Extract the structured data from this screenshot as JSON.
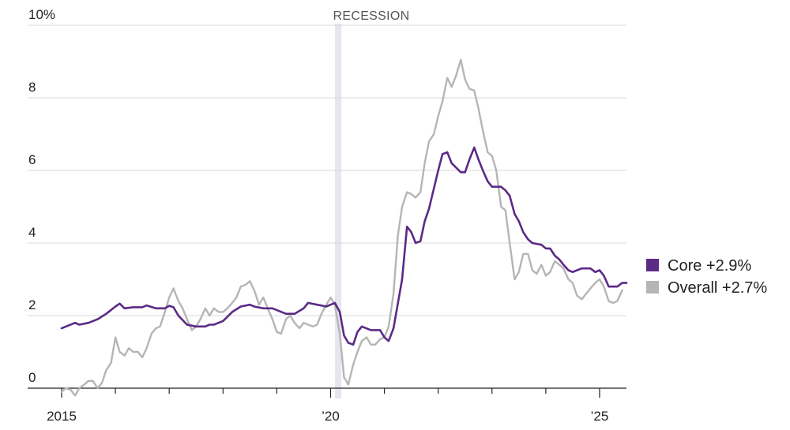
{
  "chart_data": {
    "type": "line",
    "title": "",
    "xlabel": "",
    "ylabel": "",
    "ylim": [
      0,
      10
    ],
    "xlim": [
      2015.0,
      2025.5
    ],
    "y_ticks": [
      {
        "value": 0,
        "label": "0"
      },
      {
        "value": 2,
        "label": "2"
      },
      {
        "value": 4,
        "label": "4"
      },
      {
        "value": 6,
        "label": "6"
      },
      {
        "value": 8,
        "label": "8"
      },
      {
        "value": 10,
        "label": "10%"
      }
    ],
    "x_ticks": [
      {
        "value": 2015,
        "label": "2015"
      },
      {
        "value": 2016,
        "label": ""
      },
      {
        "value": 2017,
        "label": ""
      },
      {
        "value": 2018,
        "label": ""
      },
      {
        "value": 2019,
        "label": ""
      },
      {
        "value": 2020,
        "label": "’20"
      },
      {
        "value": 2021,
        "label": ""
      },
      {
        "value": 2022,
        "label": ""
      },
      {
        "value": 2023,
        "label": ""
      },
      {
        "value": 2024,
        "label": ""
      },
      {
        "value": 2025,
        "label": "’25"
      }
    ],
    "grid": "horizontal",
    "legend": "right",
    "recession": {
      "label": "RECESSION",
      "start": 2020.08,
      "end": 2020.2
    },
    "series": [
      {
        "name": "Core +2.9%",
        "color": "#5b2a86",
        "points": [
          [
            2015.0,
            1.65
          ],
          [
            2015.25,
            1.8
          ],
          [
            2015.33,
            1.75
          ],
          [
            2015.5,
            1.8
          ],
          [
            2015.67,
            1.9
          ],
          [
            2015.83,
            2.05
          ],
          [
            2016.0,
            2.25
          ],
          [
            2016.08,
            2.33
          ],
          [
            2016.17,
            2.2
          ],
          [
            2016.33,
            2.23
          ],
          [
            2016.5,
            2.23
          ],
          [
            2016.58,
            2.28
          ],
          [
            2016.75,
            2.2
          ],
          [
            2016.92,
            2.2
          ],
          [
            2017.0,
            2.27
          ],
          [
            2017.08,
            2.23
          ],
          [
            2017.17,
            2.0
          ],
          [
            2017.33,
            1.75
          ],
          [
            2017.5,
            1.7
          ],
          [
            2017.67,
            1.7
          ],
          [
            2017.75,
            1.75
          ],
          [
            2017.83,
            1.75
          ],
          [
            2018.0,
            1.85
          ],
          [
            2018.17,
            2.1
          ],
          [
            2018.33,
            2.25
          ],
          [
            2018.5,
            2.3
          ],
          [
            2018.58,
            2.25
          ],
          [
            2018.75,
            2.2
          ],
          [
            2018.92,
            2.2
          ],
          [
            2019.17,
            2.05
          ],
          [
            2019.33,
            2.05
          ],
          [
            2019.5,
            2.2
          ],
          [
            2019.58,
            2.35
          ],
          [
            2019.75,
            2.3
          ],
          [
            2019.92,
            2.25
          ],
          [
            2020.0,
            2.3
          ],
          [
            2020.08,
            2.35
          ],
          [
            2020.17,
            2.1
          ],
          [
            2020.25,
            1.45
          ],
          [
            2020.33,
            1.25
          ],
          [
            2020.42,
            1.2
          ],
          [
            2020.5,
            1.55
          ],
          [
            2020.58,
            1.7
          ],
          [
            2020.75,
            1.6
          ],
          [
            2020.92,
            1.6
          ],
          [
            2021.0,
            1.4
          ],
          [
            2021.08,
            1.3
          ],
          [
            2021.17,
            1.65
          ],
          [
            2021.33,
            3.0
          ],
          [
            2021.42,
            4.45
          ],
          [
            2021.5,
            4.3
          ],
          [
            2021.58,
            4.0
          ],
          [
            2021.67,
            4.05
          ],
          [
            2021.75,
            4.6
          ],
          [
            2021.83,
            4.95
          ],
          [
            2021.92,
            5.5
          ],
          [
            2022.0,
            6.0
          ],
          [
            2022.08,
            6.45
          ],
          [
            2022.17,
            6.5
          ],
          [
            2022.25,
            6.2
          ],
          [
            2022.42,
            5.95
          ],
          [
            2022.5,
            5.95
          ],
          [
            2022.58,
            6.3
          ],
          [
            2022.67,
            6.63
          ],
          [
            2022.75,
            6.3
          ],
          [
            2022.83,
            6.0
          ],
          [
            2022.92,
            5.7
          ],
          [
            2023.0,
            5.55
          ],
          [
            2023.17,
            5.55
          ],
          [
            2023.25,
            5.45
          ],
          [
            2023.33,
            5.3
          ],
          [
            2023.42,
            4.8
          ],
          [
            2023.5,
            4.6
          ],
          [
            2023.58,
            4.3
          ],
          [
            2023.67,
            4.1
          ],
          [
            2023.75,
            4.0
          ],
          [
            2023.92,
            3.95
          ],
          [
            2024.0,
            3.85
          ],
          [
            2024.08,
            3.85
          ],
          [
            2024.17,
            3.65
          ],
          [
            2024.25,
            3.55
          ],
          [
            2024.33,
            3.4
          ],
          [
            2024.42,
            3.25
          ],
          [
            2024.5,
            3.2
          ],
          [
            2024.58,
            3.25
          ],
          [
            2024.67,
            3.3
          ],
          [
            2024.75,
            3.3
          ],
          [
            2024.83,
            3.3
          ],
          [
            2024.92,
            3.2
          ],
          [
            2025.0,
            3.25
          ],
          [
            2025.08,
            3.1
          ],
          [
            2025.17,
            2.8
          ],
          [
            2025.25,
            2.8
          ],
          [
            2025.33,
            2.8
          ],
          [
            2025.42,
            2.9
          ],
          [
            2025.5,
            2.9
          ]
        ]
      },
      {
        "name": "Overall +2.7%",
        "color": "#b5b5b5",
        "points": [
          [
            2015.0,
            -0.1
          ],
          [
            2015.08,
            0.0
          ],
          [
            2015.17,
            -0.05
          ],
          [
            2015.25,
            -0.2
          ],
          [
            2015.33,
            0.0
          ],
          [
            2015.42,
            0.1
          ],
          [
            2015.5,
            0.2
          ],
          [
            2015.58,
            0.2
          ],
          [
            2015.67,
            0.0
          ],
          [
            2015.75,
            0.15
          ],
          [
            2015.83,
            0.5
          ],
          [
            2015.92,
            0.7
          ],
          [
            2016.0,
            1.4
          ],
          [
            2016.08,
            1.0
          ],
          [
            2016.17,
            0.9
          ],
          [
            2016.25,
            1.1
          ],
          [
            2016.33,
            1.0
          ],
          [
            2016.42,
            1.0
          ],
          [
            2016.5,
            0.85
          ],
          [
            2016.58,
            1.1
          ],
          [
            2016.67,
            1.5
          ],
          [
            2016.75,
            1.65
          ],
          [
            2016.83,
            1.7
          ],
          [
            2016.92,
            2.1
          ],
          [
            2017.0,
            2.5
          ],
          [
            2017.08,
            2.75
          ],
          [
            2017.17,
            2.4
          ],
          [
            2017.25,
            2.2
          ],
          [
            2017.33,
            1.9
          ],
          [
            2017.42,
            1.6
          ],
          [
            2017.5,
            1.7
          ],
          [
            2017.58,
            1.9
          ],
          [
            2017.67,
            2.2
          ],
          [
            2017.75,
            2.0
          ],
          [
            2017.83,
            2.2
          ],
          [
            2017.92,
            2.1
          ],
          [
            2018.0,
            2.1
          ],
          [
            2018.08,
            2.2
          ],
          [
            2018.17,
            2.35
          ],
          [
            2018.25,
            2.5
          ],
          [
            2018.33,
            2.8
          ],
          [
            2018.42,
            2.85
          ],
          [
            2018.5,
            2.95
          ],
          [
            2018.58,
            2.7
          ],
          [
            2018.67,
            2.3
          ],
          [
            2018.75,
            2.5
          ],
          [
            2018.83,
            2.2
          ],
          [
            2018.92,
            1.9
          ],
          [
            2019.0,
            1.55
          ],
          [
            2019.08,
            1.5
          ],
          [
            2019.17,
            1.9
          ],
          [
            2019.25,
            2.0
          ],
          [
            2019.33,
            1.8
          ],
          [
            2019.42,
            1.65
          ],
          [
            2019.5,
            1.8
          ],
          [
            2019.58,
            1.75
          ],
          [
            2019.67,
            1.7
          ],
          [
            2019.75,
            1.75
          ],
          [
            2019.83,
            2.05
          ],
          [
            2019.92,
            2.3
          ],
          [
            2020.0,
            2.5
          ],
          [
            2020.08,
            2.3
          ],
          [
            2020.17,
            1.5
          ],
          [
            2020.25,
            0.3
          ],
          [
            2020.33,
            0.1
          ],
          [
            2020.42,
            0.65
          ],
          [
            2020.5,
            1.0
          ],
          [
            2020.58,
            1.3
          ],
          [
            2020.67,
            1.4
          ],
          [
            2020.75,
            1.2
          ],
          [
            2020.83,
            1.2
          ],
          [
            2020.92,
            1.35
          ],
          [
            2021.0,
            1.4
          ],
          [
            2021.08,
            1.7
          ],
          [
            2021.17,
            2.6
          ],
          [
            2021.25,
            4.2
          ],
          [
            2021.33,
            5.0
          ],
          [
            2021.42,
            5.4
          ],
          [
            2021.5,
            5.35
          ],
          [
            2021.58,
            5.25
          ],
          [
            2021.67,
            5.4
          ],
          [
            2021.75,
            6.2
          ],
          [
            2021.83,
            6.8
          ],
          [
            2021.92,
            7.0
          ],
          [
            2022.0,
            7.5
          ],
          [
            2022.08,
            7.9
          ],
          [
            2022.17,
            8.55
          ],
          [
            2022.25,
            8.3
          ],
          [
            2022.33,
            8.6
          ],
          [
            2022.42,
            9.05
          ],
          [
            2022.5,
            8.5
          ],
          [
            2022.58,
            8.25
          ],
          [
            2022.67,
            8.2
          ],
          [
            2022.75,
            7.7
          ],
          [
            2022.83,
            7.1
          ],
          [
            2022.92,
            6.5
          ],
          [
            2023.0,
            6.4
          ],
          [
            2023.08,
            6.0
          ],
          [
            2023.17,
            5.0
          ],
          [
            2023.25,
            4.9
          ],
          [
            2023.33,
            4.0
          ],
          [
            2023.42,
            3.0
          ],
          [
            2023.5,
            3.2
          ],
          [
            2023.58,
            3.7
          ],
          [
            2023.67,
            3.7
          ],
          [
            2023.75,
            3.25
          ],
          [
            2023.83,
            3.15
          ],
          [
            2023.92,
            3.4
          ],
          [
            2024.0,
            3.1
          ],
          [
            2024.08,
            3.2
          ],
          [
            2024.17,
            3.5
          ],
          [
            2024.25,
            3.4
          ],
          [
            2024.33,
            3.3
          ],
          [
            2024.42,
            3.0
          ],
          [
            2024.5,
            2.9
          ],
          [
            2024.58,
            2.55
          ],
          [
            2024.67,
            2.45
          ],
          [
            2024.75,
            2.6
          ],
          [
            2024.83,
            2.75
          ],
          [
            2024.92,
            2.9
          ],
          [
            2025.0,
            3.0
          ],
          [
            2025.08,
            2.8
          ],
          [
            2025.17,
            2.4
          ],
          [
            2025.25,
            2.35
          ],
          [
            2025.33,
            2.4
          ],
          [
            2025.42,
            2.7
          ]
        ]
      }
    ]
  }
}
